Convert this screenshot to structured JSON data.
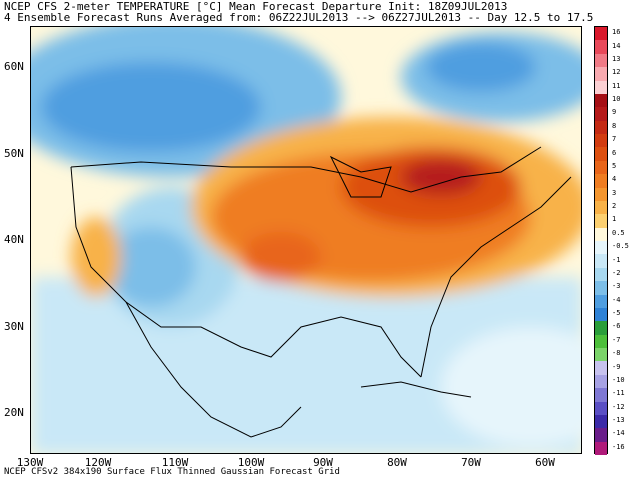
{
  "title_line1": "NCEP CFS 2-meter TEMPERATURE [°C] Mean Forecast Departure Init: 18Z09JUL2013",
  "title_line2": "4 Ensemble Forecast Runs Averaged from: 06Z22JUL2013 --> 06Z27JUL2013 -- Day 12.5 to 17.5",
  "footer": "NCEP CFSv2 384x190 Surface Flux Thinned Gaussian Forecast Grid",
  "lat_labels": [
    "60N",
    "50N",
    "40N",
    "30N",
    "20N"
  ],
  "lon_labels": [
    "130W",
    "120W",
    "110W",
    "100W",
    "90W",
    "80W",
    "70W",
    "60W"
  ],
  "colorbar": {
    "labels": [
      "16",
      "14",
      "13",
      "12",
      "11",
      "10",
      "9",
      "8",
      "7",
      "6",
      "5",
      "4",
      "3",
      "2",
      "1",
      "0.5",
      "-0.5",
      "-1",
      "-2",
      "-3",
      "-4",
      "-5",
      "-6",
      "-7",
      "-8",
      "-9",
      "-10",
      "-11",
      "-12",
      "-13",
      "-14",
      "-16"
    ],
    "colors": [
      "#d9182b",
      "#e8495a",
      "#f07a86",
      "#f8aab0",
      "#fbd0d3",
      "#a50f15",
      "#b51a1a",
      "#c42a14",
      "#d23c10",
      "#dd5010",
      "#e8651a",
      "#ef7d22",
      "#f4962f",
      "#f8b248",
      "#fcd070",
      "#fff8dc",
      "#e6f5fb",
      "#c9e8f7",
      "#a8d8f0",
      "#7cbee8",
      "#4f9ee0",
      "#2f82d6",
      "#2a9e3a",
      "#4cbf3a",
      "#7bd46a",
      "#c7c2ee",
      "#a7a2e4",
      "#7f78d4",
      "#5a4fc4",
      "#3b2aa8",
      "#6a1d8a",
      "#b01b7a"
    ]
  },
  "colors": {
    "ocean_neutral": "#f0f8ff",
    "cold_light": "#a8d8f0",
    "cold_mid": "#4f9ee0",
    "warm_light": "#f8b248",
    "warm_mid": "#e8651a",
    "warm_dark": "#b51a1a"
  }
}
